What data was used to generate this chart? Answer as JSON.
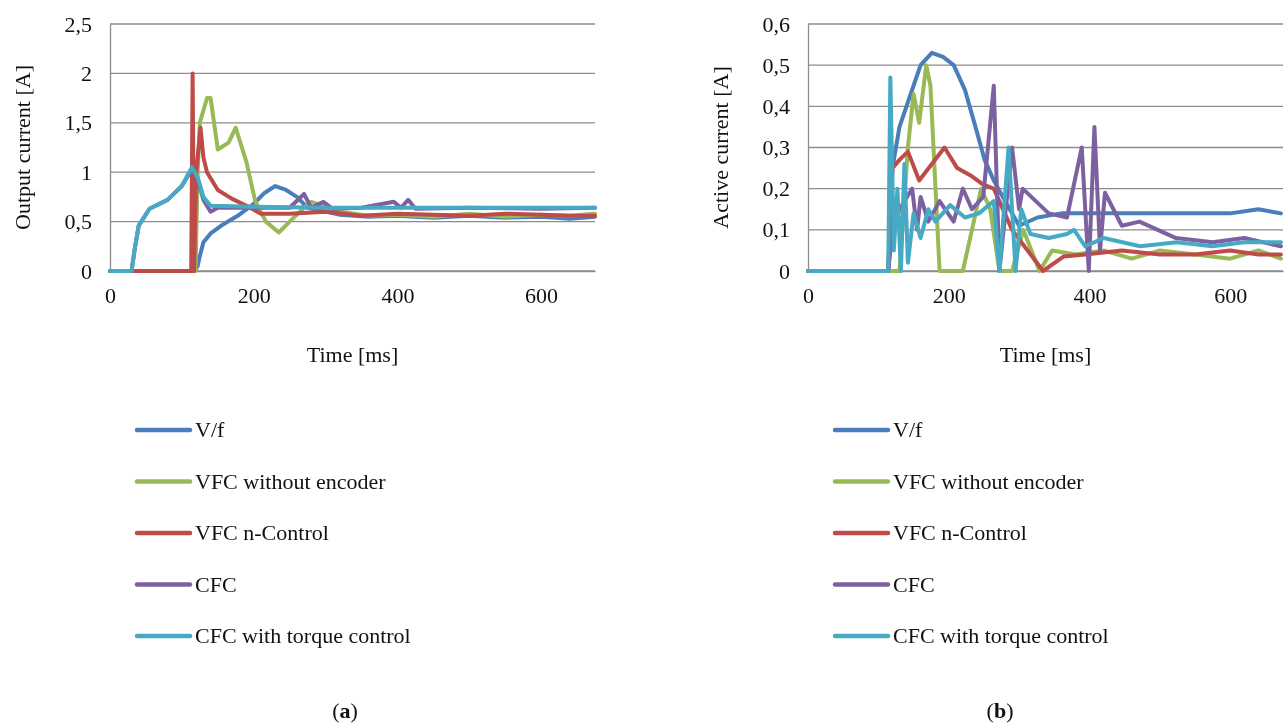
{
  "chart_data": [
    {
      "type": "line",
      "xlabel": "Time [ms]",
      "ylabel": "Output current [A]",
      "annotations": [
        "(a)"
      ],
      "xlim": [
        0,
        675
      ],
      "xticks": [
        0,
        200,
        400,
        600
      ],
      "ylim": [
        0,
        2.5
      ],
      "yticks": [
        0,
        {
          "value": 0.5,
          "label": "0,5"
        },
        1,
        {
          "value": 1.5,
          "label": "1,5"
        },
        2,
        {
          "value": 2.5,
          "label": "2,5"
        }
      ],
      "grid": "y",
      "legend": "bottom",
      "line_style": "solid",
      "series": [
        {
          "name": "V/f",
          "color": "#4a7ebb",
          "x": [
            0,
            118,
            122,
            125,
            130,
            140,
            155,
            180,
            200,
            215,
            230,
            245,
            260,
            275,
            290,
            320,
            360,
            400,
            450,
            500,
            550,
            600,
            640,
            675
          ],
          "values": [
            0,
            0,
            0.05,
            0.15,
            0.29,
            0.38,
            0.46,
            0.57,
            0.68,
            0.79,
            0.86,
            0.82,
            0.75,
            0.64,
            0.62,
            0.57,
            0.55,
            0.56,
            0.54,
            0.56,
            0.54,
            0.55,
            0.53,
            0.55
          ]
        },
        {
          "name": "VFC without encoder",
          "color": "#98b954",
          "x": [
            0,
            119,
            122,
            125,
            135,
            140,
            150,
            165,
            175,
            190,
            202,
            217,
            235,
            250,
            270,
            280,
            320,
            360,
            400,
            450,
            500,
            550,
            600,
            640,
            675
          ],
          "values": [
            0,
            0,
            1.0,
            1.5,
            1.75,
            1.75,
            1.23,
            1.3,
            1.45,
            1.1,
            0.71,
            0.5,
            0.39,
            0.5,
            0.64,
            0.7,
            0.6,
            0.56,
            0.57,
            0.55,
            0.58,
            0.55,
            0.57,
            0.56,
            0.58
          ]
        },
        {
          "name": "VFC n-Control",
          "color": "#be4b48",
          "x": [
            0,
            113,
            115,
            117,
            120,
            126,
            130,
            135,
            150,
            170,
            190,
            210,
            250,
            300,
            350,
            400,
            450,
            500,
            550,
            600,
            640,
            675
          ],
          "values": [
            0,
            0,
            2.0,
            0,
            1.0,
            1.45,
            1.15,
            1.0,
            0.82,
            0.73,
            0.66,
            0.58,
            0.58,
            0.6,
            0.56,
            0.58,
            0.57,
            0.56,
            0.58,
            0.57,
            0.56,
            0.56
          ]
        },
        {
          "name": "CFC",
          "color": "#7d60a0",
          "x": [
            0,
            30,
            35,
            40,
            55,
            80,
            100,
            114,
            122,
            130,
            140,
            150,
            200,
            250,
            270,
            280,
            297,
            310,
            350,
            395,
            405,
            415,
            425,
            500,
            600,
            675
          ],
          "values": [
            0,
            0,
            0.25,
            0.46,
            0.63,
            0.72,
            0.86,
            1.03,
            0.93,
            0.72,
            0.6,
            0.64,
            0.64,
            0.64,
            0.78,
            0.64,
            0.7,
            0.63,
            0.64,
            0.7,
            0.64,
            0.72,
            0.63,
            0.64,
            0.63,
            0.64
          ]
        },
        {
          "name": "CFC with torque control",
          "color": "#46aac5",
          "x": [
            0,
            30,
            35,
            40,
            55,
            80,
            100,
            114,
            122,
            130,
            140,
            200,
            300,
            400,
            500,
            600,
            675
          ],
          "values": [
            0,
            0,
            0.25,
            0.46,
            0.63,
            0.72,
            0.86,
            1.05,
            0.95,
            0.75,
            0.66,
            0.65,
            0.64,
            0.64,
            0.64,
            0.64,
            0.64
          ]
        }
      ]
    },
    {
      "type": "line",
      "xlabel": "Time [ms]",
      "ylabel": "Active current [A]",
      "annotations": [
        "(b)"
      ],
      "xlim": [
        0,
        675
      ],
      "xticks": [
        0,
        200,
        400,
        600
      ],
      "ylim": [
        0,
        0.6
      ],
      "yticks": [
        0,
        {
          "value": 0.1,
          "label": "0,1"
        },
        {
          "value": 0.2,
          "label": "0,2"
        },
        {
          "value": 0.3,
          "label": "0,3"
        },
        {
          "value": 0.4,
          "label": "0,4"
        },
        {
          "value": 0.5,
          "label": "0,5"
        },
        {
          "value": 0.6,
          "label": "0,6"
        }
      ],
      "grid": "y",
      "legend": "bottom",
      "line_style": "solid",
      "series": [
        {
          "name": "V/f",
          "color": "#4a7ebb",
          "x": [
            0,
            114,
            120,
            130,
            150,
            160,
            176,
            192,
            207,
            223,
            238,
            251,
            264,
            280,
            300,
            326,
            360,
            400,
            450,
            500,
            550,
            600,
            640,
            672
          ],
          "values": [
            0,
            0,
            0.25,
            0.35,
            0.45,
            0.5,
            0.53,
            0.52,
            0.5,
            0.44,
            0.35,
            0.27,
            0.22,
            0.17,
            0.11,
            0.13,
            0.14,
            0.14,
            0.14,
            0.14,
            0.14,
            0.14,
            0.15,
            0.14
          ]
        },
        {
          "name": "VFC without encoder",
          "color": "#98b954",
          "x": [
            0,
            130,
            142,
            150,
            158,
            168,
            174,
            187,
            220,
            233,
            246,
            259,
            272,
            290,
            306,
            329,
            347,
            380,
            420,
            460,
            500,
            550,
            600,
            640,
            672
          ],
          "values": [
            0,
            0,
            0.3,
            0.43,
            0.36,
            0.5,
            0.45,
            0,
            0,
            0.1,
            0.2,
            0.15,
            0,
            0,
            0.1,
            0,
            0.05,
            0.04,
            0.05,
            0.03,
            0.05,
            0.04,
            0.03,
            0.05,
            0.03
          ]
        },
        {
          "name": "VFC n-Control",
          "color": "#be4b48",
          "x": [
            0,
            114,
            120,
            130,
            142,
            158,
            194,
            212,
            233,
            249,
            264,
            290,
            334,
            363,
            394,
            446,
            500,
            550,
            600,
            640,
            672
          ],
          "values": [
            0,
            0,
            0.25,
            0.27,
            0.29,
            0.22,
            0.3,
            0.25,
            0.23,
            0.21,
            0.2,
            0.1,
            0,
            0.035,
            0.04,
            0.05,
            0.04,
            0.04,
            0.05,
            0.04,
            0.04
          ]
        },
        {
          "name": "CFC",
          "color": "#7d60a0",
          "x": [
            0,
            114,
            120,
            130,
            148,
            155,
            160,
            171,
            187,
            207,
            220,
            233,
            249,
            264,
            272,
            290,
            300,
            305,
            342,
            368,
            389,
            399,
            407,
            415,
            422,
            446,
            471,
            523,
            575,
            620,
            672
          ],
          "values": [
            0,
            0,
            0.1,
            0.15,
            0.2,
            0.1,
            0.18,
            0.12,
            0.17,
            0.12,
            0.2,
            0.15,
            0.18,
            0.45,
            0,
            0.3,
            0.15,
            0.2,
            0.14,
            0.13,
            0.3,
            0,
            0.35,
            0.05,
            0.19,
            0.11,
            0.12,
            0.08,
            0.07,
            0.08,
            0.06
          ]
        },
        {
          "name": "CFC with torque control",
          "color": "#46aac5",
          "x": [
            0,
            114,
            117,
            122,
            127,
            132,
            137,
            142,
            150,
            160,
            171,
            181,
            202,
            223,
            243,
            264,
            272,
            285,
            295,
            303,
            316,
            342,
            368,
            378,
            394,
            420,
            472,
            524,
            575,
            620,
            672
          ],
          "values": [
            0,
            0,
            0.47,
            0.05,
            0.2,
            0,
            0.26,
            0.02,
            0.14,
            0.08,
            0.15,
            0.12,
            0.16,
            0.13,
            0.14,
            0.17,
            0,
            0.3,
            0,
            0.15,
            0.09,
            0.08,
            0.09,
            0.1,
            0.06,
            0.08,
            0.06,
            0.07,
            0.06,
            0.07,
            0.07
          ]
        }
      ]
    }
  ]
}
